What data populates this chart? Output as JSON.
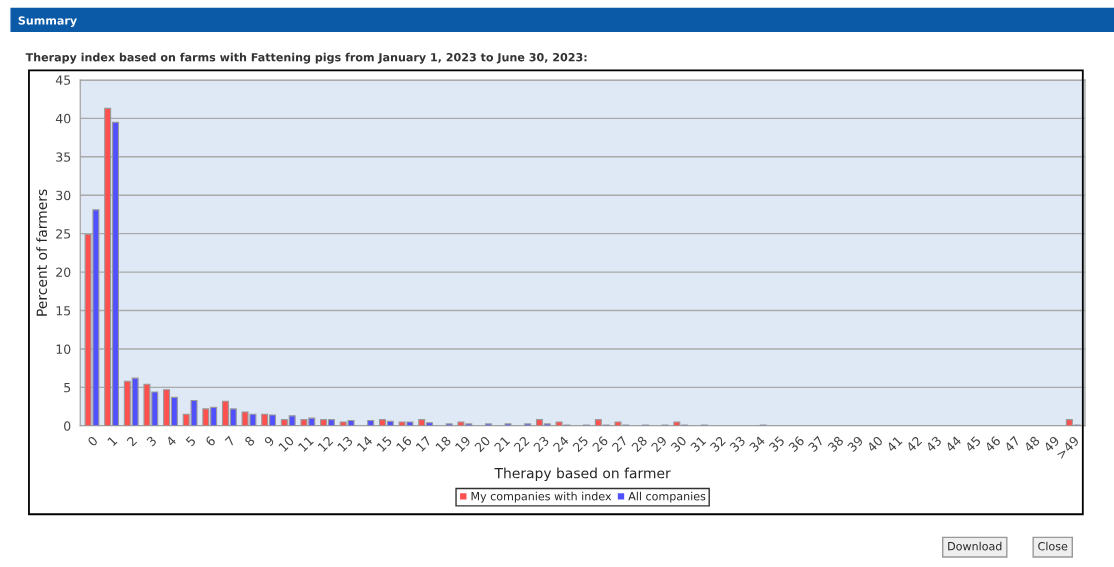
{
  "chart_data": {
    "type": "bar",
    "title": "Therapy index based on farms with Fattening pigs from January 1, 2023 to June 30, 2023:",
    "xlabel": "Therapy based on farmer",
    "ylabel": "Percent of farmers",
    "categories": [
      "0",
      "1",
      "2",
      "3",
      "4",
      "5",
      "6",
      "7",
      "8",
      "9",
      "10",
      "11",
      "12",
      "13",
      "14",
      "15",
      "16",
      "17",
      "18",
      "19",
      "20",
      "21",
      "22",
      "23",
      "24",
      "25",
      "26",
      "27",
      "28",
      "29",
      "30",
      "31",
      "32",
      "33",
      "34",
      "35",
      "36",
      "37",
      "38",
      "39",
      "40",
      "41",
      "42",
      "43",
      "44",
      "45",
      "46",
      "47",
      "48",
      "49",
      ">49"
    ],
    "series": [
      {
        "name": "My companies with index",
        "color": "#ff5050",
        "values": [
          24.9,
          41.3,
          5.8,
          5.4,
          4.7,
          1.5,
          2.2,
          3.2,
          1.8,
          1.5,
          0.8,
          0.8,
          0.8,
          0.5,
          0,
          0.8,
          0.5,
          0.8,
          0,
          0.5,
          0,
          0,
          0,
          0.8,
          0.5,
          0,
          0.8,
          0.5,
          0,
          0,
          0.5,
          0,
          0,
          0,
          0,
          0,
          0,
          0,
          0,
          0,
          0,
          0,
          0,
          0,
          0,
          0,
          0,
          0,
          0,
          0,
          0.8
        ]
      },
      {
        "name": "All companies",
        "color": "#5050ff",
        "values": [
          28.1,
          39.5,
          6.2,
          4.4,
          3.7,
          3.3,
          2.4,
          2.2,
          1.5,
          1.4,
          1.3,
          1.0,
          0.8,
          0.7,
          0.7,
          0.6,
          0.5,
          0.4,
          0.25,
          0.25,
          0.25,
          0.25,
          0.25,
          0.25,
          0.1,
          0.1,
          0.1,
          0.1,
          0.1,
          0.1,
          0.1,
          0.1,
          0,
          0,
          0.1,
          0,
          0,
          0,
          0,
          0,
          0,
          0,
          0,
          0,
          0,
          0,
          0,
          0,
          0,
          0,
          0.1
        ]
      }
    ],
    "ylim": [
      0,
      45
    ],
    "yticks": [
      0,
      5,
      10,
      15,
      20,
      25,
      30,
      35,
      40,
      45
    ],
    "grid": "y",
    "legend": "bottom",
    "annotations": [
      "Summary",
      "Download",
      "Close"
    ]
  }
}
